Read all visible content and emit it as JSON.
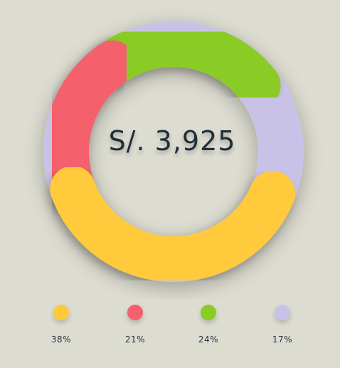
{
  "chart_data": {
    "type": "pie",
    "center_label": "S/. 3,925",
    "slices": [
      {
        "value": 38,
        "label": "38%",
        "color": "#ffca3a"
      },
      {
        "value": 21,
        "label": "21%",
        "color": "#f4606c"
      },
      {
        "value": 24,
        "label": "24%",
        "color": "#8acb25"
      },
      {
        "value": 17,
        "label": "17%",
        "color": "#c8c3e6"
      }
    ],
    "legend_placement": "bottom"
  }
}
